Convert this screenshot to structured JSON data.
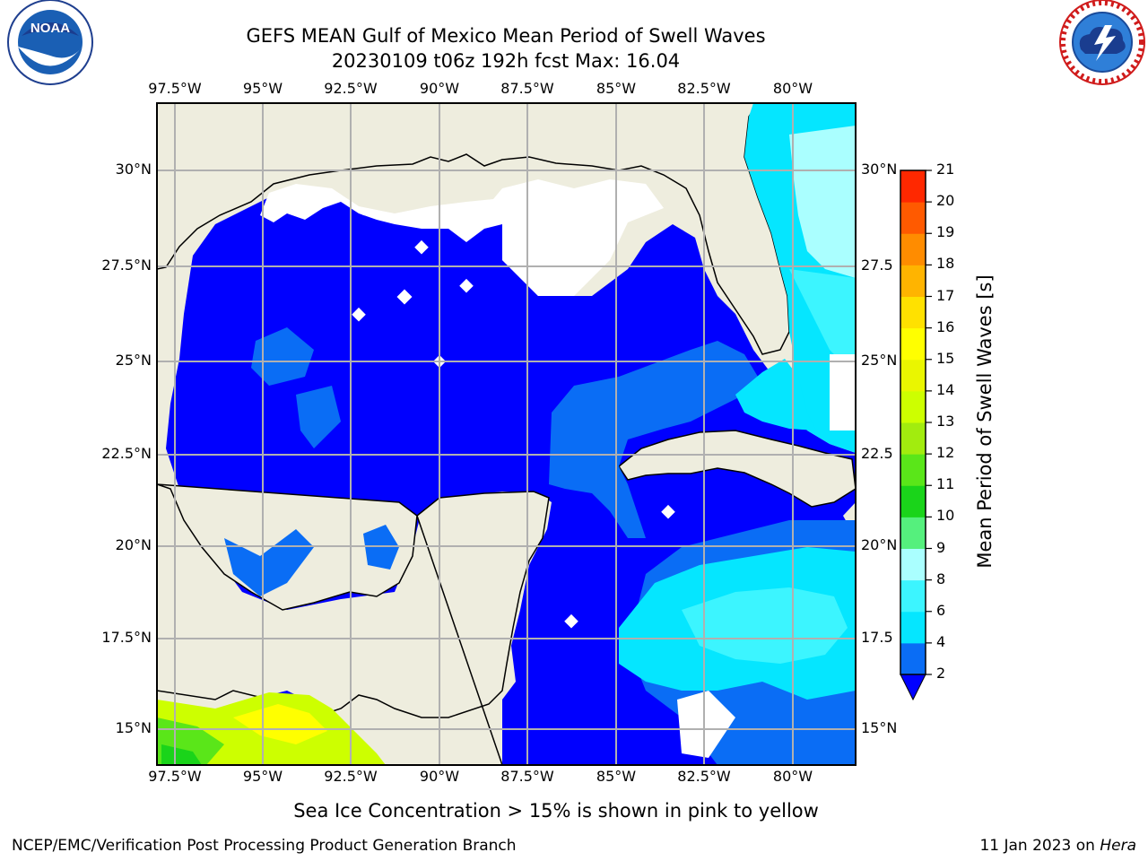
{
  "title": {
    "line1": "GEFS MEAN Gulf of Mexico Mean Period of Swell Waves",
    "line2": "20230109 t06z 192h fcst   Max: 16.04"
  },
  "logos": {
    "left": {
      "icon": "noaa-logo-icon",
      "ring_text": "NATIONAL OCEANIC AND ATMOSPHERIC ADMINISTRATION · U.S. DEPARTMENT OF COMMERCE",
      "center_text": "NOAA"
    },
    "right": {
      "icon": "nws-logo-icon",
      "ring_text": "NATIONAL WEATHER SERVICE"
    }
  },
  "axes": {
    "x_ticks": [
      "97.5°W",
      "95°W",
      "92.5°W",
      "90°W",
      "87.5°W",
      "85°W",
      "82.5°W",
      "80°W"
    ],
    "y_ticks_left": [
      "30°N",
      "27.5°N",
      "25°N",
      "22.5°N",
      "20°N",
      "17.5°N",
      "15°N"
    ],
    "y_ticks_right": [
      "30°N",
      "27.5",
      "25°N",
      "22.5",
      "20°N",
      "17.5",
      "15°N"
    ],
    "lon_range": [
      -98,
      -78.25
    ],
    "lat_range": [
      14,
      31.8
    ]
  },
  "colorbar": {
    "label": "Mean Period of Swell Waves [s]",
    "ticks": [
      "2",
      "4",
      "6",
      "8",
      "9",
      "10",
      "11",
      "12",
      "13",
      "14",
      "15",
      "16",
      "17",
      "18",
      "19",
      "20",
      "21"
    ],
    "colors": [
      "#0a6df5",
      "#05e6ff",
      "#3cf5ff",
      "#aaffff",
      "#55f07d",
      "#1ad41a",
      "#5ae619",
      "#a2ec0e",
      "#cdff00",
      "#eaf600",
      "#ffff00",
      "#ffe100",
      "#ffb400",
      "#ff8c00",
      "#ff5a00",
      "#ff2800"
    ],
    "extend_color": "#0000ff"
  },
  "colors": {
    "land": "#eeedde",
    "deep_blue": "#0000ff",
    "mid_blue": "#0a6df5",
    "cyan": "#05e6ff",
    "light_cyan": "#3cf5ff",
    "pale_cyan": "#aaffff",
    "grid": "#b0b0b0",
    "no_data": "#ffffff"
  },
  "note": "Sea Ice Concentration > 15% is shown in pink to yellow",
  "footer": {
    "left": "NCEP/EMC/Verification Post Processing Product Generation Branch",
    "right_date": "11 Jan 2023 on ",
    "right_host": "Hera"
  }
}
